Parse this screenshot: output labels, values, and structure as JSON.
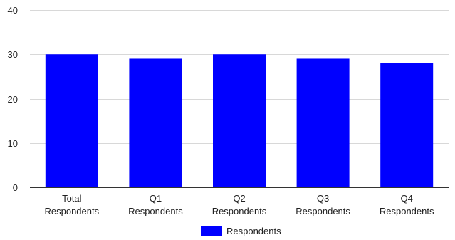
{
  "chart_data": {
    "type": "bar",
    "categories": [
      [
        "Total",
        "Respondents"
      ],
      [
        "Q1",
        "Respondents"
      ],
      [
        "Q2",
        "Respondents"
      ],
      [
        "Q3",
        "Respondents"
      ],
      [
        "Q4",
        "Respondents"
      ]
    ],
    "series": [
      {
        "name": "Respondents",
        "values": [
          30,
          29,
          30,
          29,
          28
        ],
        "color": "#0000ff"
      }
    ],
    "ylim": [
      0,
      40
    ],
    "yticks": [
      0,
      10,
      20,
      30,
      40
    ],
    "grid": true,
    "legend_position": "bottom"
  }
}
